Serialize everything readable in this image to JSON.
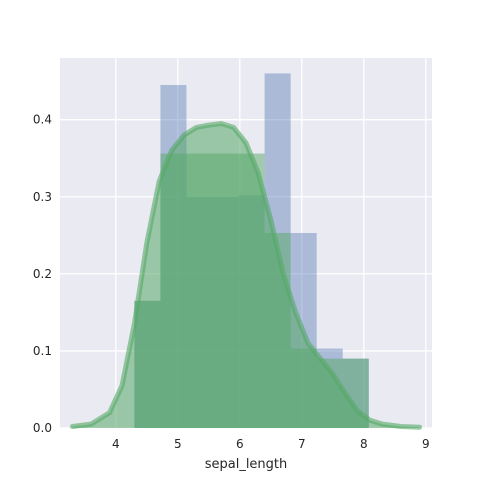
{
  "chart_data": {
    "type": "bar",
    "title": "",
    "xlabel": "sepal_length",
    "ylabel": "",
    "xlim": [
      3.1,
      9.1
    ],
    "ylim": [
      0,
      0.48
    ],
    "xticks": [
      4,
      5,
      6,
      7,
      8,
      9
    ],
    "yticks": [
      0.0,
      0.1,
      0.2,
      0.3,
      0.4
    ],
    "grid": true,
    "background": "#eaeaf2",
    "series": [
      {
        "kind": "histogram",
        "color": "#4c72b0",
        "opacity": 0.4,
        "bins": [
          {
            "x0": 4.3,
            "x1": 4.72,
            "value": 0.165
          },
          {
            "x0": 4.72,
            "x1": 5.14,
            "value": 0.445
          },
          {
            "x0": 5.14,
            "x1": 5.56,
            "value": 0.3
          },
          {
            "x0": 5.56,
            "x1": 5.98,
            "value": 0.3
          },
          {
            "x0": 5.98,
            "x1": 6.4,
            "value": 0.302
          },
          {
            "x0": 6.4,
            "x1": 6.82,
            "value": 0.46
          },
          {
            "x0": 6.82,
            "x1": 7.24,
            "value": 0.253
          },
          {
            "x0": 7.24,
            "x1": 7.66,
            "value": 0.103
          },
          {
            "x0": 7.66,
            "x1": 8.08,
            "value": 0.09
          }
        ]
      },
      {
        "kind": "histogram",
        "color": "#55a868",
        "opacity": 0.5,
        "bins": [
          {
            "x0": 4.3,
            "x1": 4.72,
            "value": 0.165
          },
          {
            "x0": 4.72,
            "x1": 5.14,
            "value": 0.356
          },
          {
            "x0": 5.14,
            "x1": 5.56,
            "value": 0.356
          },
          {
            "x0": 5.56,
            "x1": 5.98,
            "value": 0.356
          },
          {
            "x0": 5.98,
            "x1": 6.4,
            "value": 0.356
          },
          {
            "x0": 6.4,
            "x1": 6.82,
            "value": 0.253
          },
          {
            "x0": 6.82,
            "x1": 7.24,
            "value": 0.103
          },
          {
            "x0": 7.24,
            "x1": 7.66,
            "value": 0.09
          },
          {
            "x0": 7.66,
            "x1": 8.08,
            "value": 0.09
          }
        ]
      },
      {
        "kind": "kde",
        "color": "#55a868",
        "fill_opacity": 0.55,
        "line_opacity": 0.6,
        "x": [
          3.3,
          3.6,
          3.9,
          4.1,
          4.3,
          4.5,
          4.7,
          4.9,
          5.1,
          5.3,
          5.5,
          5.7,
          5.9,
          6.1,
          6.3,
          6.5,
          6.7,
          6.9,
          7.1,
          7.3,
          7.5,
          7.7,
          7.9,
          8.1,
          8.3,
          8.6,
          8.9
        ],
        "y": [
          0.002,
          0.005,
          0.02,
          0.055,
          0.135,
          0.24,
          0.32,
          0.36,
          0.38,
          0.39,
          0.393,
          0.395,
          0.39,
          0.37,
          0.33,
          0.27,
          0.2,
          0.15,
          0.11,
          0.09,
          0.07,
          0.045,
          0.022,
          0.01,
          0.005,
          0.002,
          0.001
        ]
      }
    ]
  }
}
